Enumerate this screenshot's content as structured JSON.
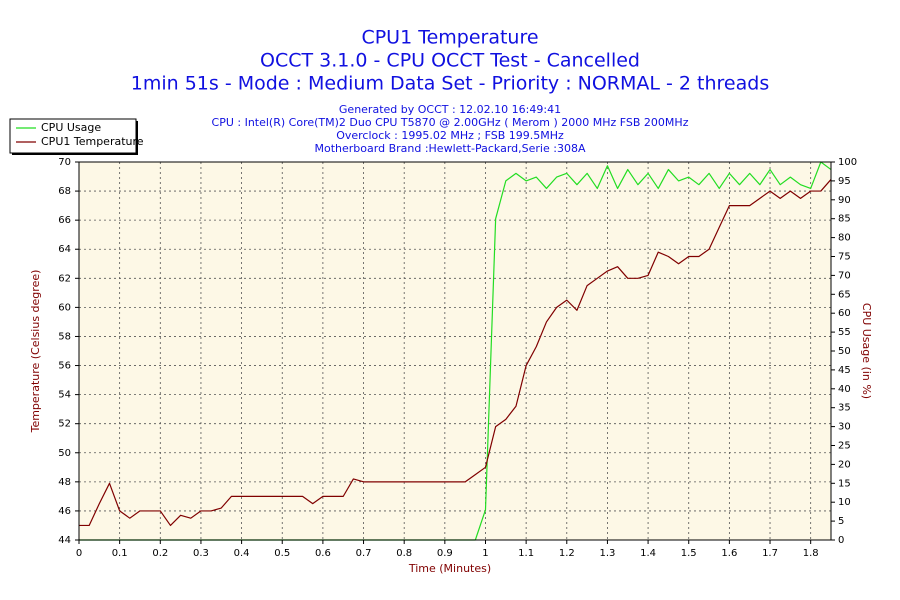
{
  "chart_data": {
    "type": "line",
    "title": [
      "CPU1 Temperature",
      "OCCT 3.1.0 - CPU OCCT Test - Cancelled",
      "1min 51s - Mode : Medium Data Set - Priority : NORMAL - 2 threads"
    ],
    "subtitle": [
      "Generated by OCCT : 12.02.10 16:49:41",
      "CPU : Intel(R) Core(TM)2 Duo CPU T5870 @ 2.00GHz ( Merom ) 2000 MHz FSB 200MHz",
      "Overclock : 1995.02 MHz ; FSB 199.5MHz",
      "Motherboard Brand :Hewlett-Packard,Serie :308A"
    ],
    "x_label": "Time (Minutes)",
    "y_label": "Temperature (Celsius degree)",
    "y2_label": "CPU Usage (in %)",
    "x": [
      0,
      0.025,
      0.05,
      0.075,
      0.1,
      0.125,
      0.15,
      0.175,
      0.2,
      0.225,
      0.25,
      0.275,
      0.3,
      0.325,
      0.35,
      0.375,
      0.4,
      0.425,
      0.45,
      0.475,
      0.5,
      0.525,
      0.55,
      0.575,
      0.6,
      0.625,
      0.65,
      0.675,
      0.7,
      0.725,
      0.75,
      0.775,
      0.8,
      0.825,
      0.85,
      0.875,
      0.9,
      0.925,
      0.95,
      0.975,
      1,
      1.025,
      1.05,
      1.075,
      1.1,
      1.125,
      1.15,
      1.175,
      1.2,
      1.225,
      1.25,
      1.275,
      1.3,
      1.325,
      1.35,
      1.375,
      1.4,
      1.425,
      1.45,
      1.475,
      1.5,
      1.525,
      1.55,
      1.575,
      1.6,
      1.625,
      1.65,
      1.675,
      1.7,
      1.725,
      1.75,
      1.775,
      1.8,
      1.825,
      1.85
    ],
    "series": [
      {
        "name": "CPU Usage",
        "color": "#22dd22",
        "axis": "y2",
        "values": [
          0,
          0,
          0,
          0,
          0,
          0,
          0,
          0,
          0,
          0,
          0,
          0,
          0,
          0,
          0,
          0,
          0,
          0,
          0,
          0,
          0,
          0,
          0,
          0,
          0,
          0,
          0,
          0,
          0,
          0,
          0,
          0,
          0,
          0,
          0,
          0,
          0,
          0,
          0,
          0,
          8,
          85,
          95,
          97,
          95,
          96,
          93,
          96,
          97,
          94,
          97,
          93,
          99,
          93,
          98,
          94,
          97,
          93,
          98,
          95,
          96,
          94,
          97,
          93,
          97,
          94,
          97,
          94,
          98,
          94,
          96,
          94,
          93,
          100,
          98
        ]
      },
      {
        "name": "CPU1 Temperature",
        "color": "#800000",
        "values": [
          45,
          45,
          46.5,
          47.9,
          46,
          45.5,
          46,
          46,
          46,
          45,
          45.7,
          45.5,
          46,
          46,
          46.2,
          47,
          47,
          47,
          47,
          47,
          47,
          47,
          47,
          46.5,
          47,
          47,
          47,
          48.2,
          48,
          48,
          48,
          48,
          48,
          48,
          48,
          48,
          48,
          48,
          48,
          48.5,
          49,
          51.8,
          52.3,
          53.2,
          56,
          57.3,
          59,
          60,
          60.5,
          59.8,
          61.5,
          62,
          62.5,
          62.8,
          62,
          62,
          62.2,
          63.8,
          63.5,
          63,
          63.5,
          63.5,
          64,
          65.5,
          67,
          67,
          67,
          67.5,
          68,
          67.5,
          68,
          67.5,
          68,
          68,
          68.8
        ]
      }
    ],
    "xlim": [
      0,
      1.85
    ],
    "xticks": [
      0,
      0.1,
      0.2,
      0.3,
      0.4,
      0.5,
      0.6,
      0.7,
      0.8,
      0.9,
      1,
      1.1,
      1.2,
      1.3,
      1.4,
      1.5,
      1.6,
      1.7,
      1.8
    ],
    "ylim": [
      44,
      70
    ],
    "yticks": [
      44,
      46,
      48,
      50,
      52,
      54,
      56,
      58,
      60,
      62,
      64,
      66,
      68,
      70
    ],
    "y2lim": [
      0,
      100
    ],
    "y2ticks": [
      0,
      5,
      10,
      15,
      20,
      25,
      30,
      35,
      40,
      45,
      50,
      55,
      60,
      65,
      70,
      75,
      80,
      85,
      90,
      95,
      100
    ],
    "grid": true,
    "legend": "top-left"
  }
}
